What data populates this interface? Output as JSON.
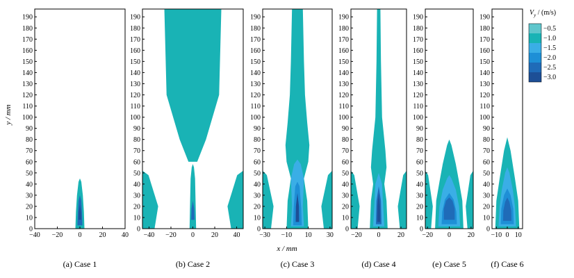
{
  "colors": {
    "background": "#ffffff",
    "levels": [
      "#5fc6cc",
      "#19b3b5",
      "#3aaee6",
      "#1e8fd6",
      "#1f6bb8",
      "#1d4f96"
    ]
  },
  "legend": {
    "label": "V",
    "subscript": "y",
    "unit": " / (m/s)",
    "ticks": [
      "−0.5",
      "−1.0",
      "−1.5",
      "−2.0",
      "−2.5",
      "−3.0"
    ]
  },
  "axes": {
    "ylabel": "y / mm",
    "xlabel": "x / mm",
    "yticks": [
      0,
      10,
      20,
      30,
      40,
      50,
      60,
      70,
      80,
      90,
      100,
      110,
      120,
      130,
      140,
      150,
      160,
      170,
      180,
      190
    ]
  },
  "chart_data": [
    {
      "type": "contour",
      "caption": "(a) Case 1",
      "xlim": [
        -40,
        40
      ],
      "ylim": [
        0,
        197
      ],
      "xticks": [
        -40,
        -20,
        0,
        20,
        40
      ],
      "xtick_labels": [
        "−40",
        "−20",
        "0",
        "20",
        "40"
      ],
      "core_peak_y_mm": 45,
      "core_max_abs_vy": 3.0,
      "wall_jets": false,
      "upper_plume": false
    },
    {
      "type": "contour",
      "caption": "(b) Case 2",
      "xlim": [
        -46,
        46
      ],
      "ylim": [
        0,
        197
      ],
      "xticks": [
        -40,
        -20,
        0,
        20,
        40
      ],
      "xtick_labels": [
        "−40",
        "−20",
        "0",
        "20",
        "40"
      ],
      "core_peak_y_mm": 55,
      "core_max_abs_vy": 2.5,
      "wall_jets": true,
      "upper_plume": true
    },
    {
      "type": "contour",
      "caption": "(c) Case 3",
      "xlim": [
        -32,
        32
      ],
      "ylim": [
        0,
        197
      ],
      "xticks": [
        -30,
        -10,
        10,
        30
      ],
      "xtick_labels": [
        "−30",
        "−10",
        "10",
        "30"
      ],
      "core_peak_y_mm": 75,
      "core_max_abs_vy": 3.0,
      "wall_jets": true,
      "upper_plume": true
    },
    {
      "type": "contour",
      "caption": "(d) Case 4",
      "xlim": [
        -25,
        25
      ],
      "ylim": [
        0,
        197
      ],
      "xticks": [
        -20,
        0,
        20
      ],
      "xtick_labels": [
        "−20",
        "0",
        "20"
      ],
      "core_peak_y_mm": 75,
      "core_max_abs_vy": 3.0,
      "wall_jets": true,
      "upper_plume": true
    },
    {
      "type": "contour",
      "caption": "(e) Case 5",
      "xlim": [
        -22,
        22
      ],
      "ylim": [
        0,
        197
      ],
      "xticks": [
        -20,
        0,
        20
      ],
      "xtick_labels": [
        "−20",
        "0",
        "20"
      ],
      "core_peak_y_mm": 80,
      "core_max_abs_vy": 3.0,
      "wall_jets": true,
      "upper_plume": false
    },
    {
      "type": "contour",
      "caption": "(f) Case 6",
      "xlim": [
        -14,
        14
      ],
      "ylim": [
        0,
        197
      ],
      "xticks": [
        -10,
        0,
        10
      ],
      "xtick_labels": [
        "−10",
        "0",
        "10"
      ],
      "core_peak_y_mm": 82,
      "core_max_abs_vy": 3.0,
      "wall_jets": false,
      "upper_plume": false
    }
  ]
}
